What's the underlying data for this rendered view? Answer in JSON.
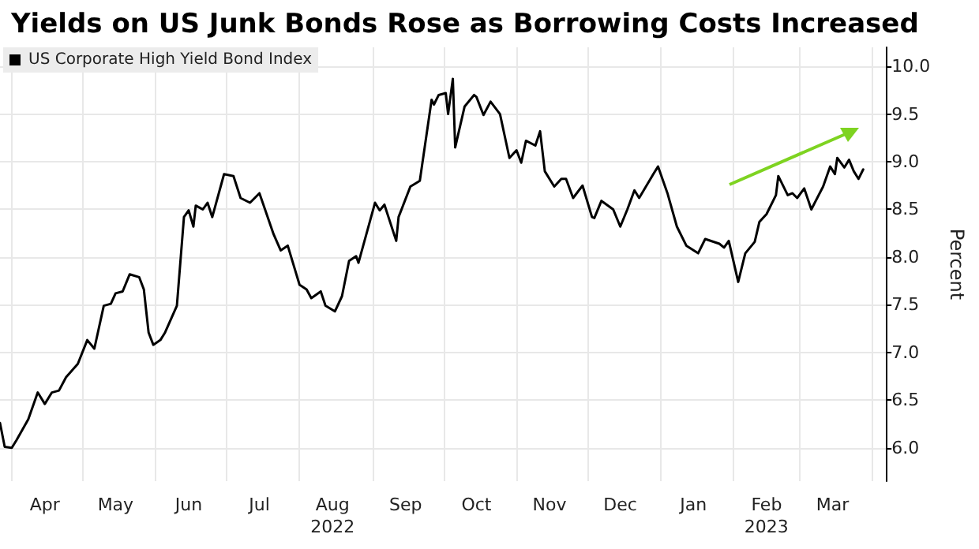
{
  "chart_data": {
    "type": "line",
    "title": "Yields on US Junk Bonds Rose as Borrowing Costs Increased",
    "ylabel": "Percent",
    "x": [
      "2022-03-27",
      "2022-03-29",
      "2022-04-01",
      "2022-04-03",
      "2022-04-08",
      "2022-04-12",
      "2022-04-15",
      "2022-04-18",
      "2022-04-21",
      "2022-04-24",
      "2022-04-29",
      "2022-05-03",
      "2022-05-06",
      "2022-05-10",
      "2022-05-13",
      "2022-05-15",
      "2022-05-18",
      "2022-05-21",
      "2022-05-25",
      "2022-05-27",
      "2022-05-29",
      "2022-05-31",
      "2022-06-03",
      "2022-06-05",
      "2022-06-10",
      "2022-06-13",
      "2022-06-15",
      "2022-06-17",
      "2022-06-18",
      "2022-06-21",
      "2022-06-23",
      "2022-06-25",
      "2022-06-30",
      "2022-07-04",
      "2022-07-07",
      "2022-07-11",
      "2022-07-15",
      "2022-07-21",
      "2022-07-24",
      "2022-07-27",
      "2022-08-01",
      "2022-08-04",
      "2022-08-06",
      "2022-08-10",
      "2022-08-12",
      "2022-08-16",
      "2022-08-19",
      "2022-08-22",
      "2022-08-25",
      "2022-08-26",
      "2022-09-02",
      "2022-09-04",
      "2022-09-06",
      "2022-09-11",
      "2022-09-12",
      "2022-09-17",
      "2022-09-21",
      "2022-09-26",
      "2022-09-27",
      "2022-09-29",
      "2022-10-02",
      "2022-10-03",
      "2022-10-05",
      "2022-10-06",
      "2022-10-10",
      "2022-10-14",
      "2022-10-15",
      "2022-10-18",
      "2022-10-21",
      "2022-10-25",
      "2022-10-29",
      "2022-11-01",
      "2022-11-03",
      "2022-11-05",
      "2022-11-09",
      "2022-11-11",
      "2022-11-13",
      "2022-11-17",
      "2022-11-20",
      "2022-11-22",
      "2022-11-25",
      "2022-11-29",
      "2022-12-03",
      "2022-12-04",
      "2022-12-07",
      "2022-12-12",
      "2022-12-15",
      "2022-12-18",
      "2022-12-21",
      "2022-12-23",
      "2022-12-29",
      "2022-12-31",
      "2023-01-04",
      "2023-01-08",
      "2023-01-12",
      "2023-01-17",
      "2023-01-20",
      "2023-01-26",
      "2023-01-28",
      "2023-01-30",
      "2023-02-03",
      "2023-02-06",
      "2023-02-10",
      "2023-02-12",
      "2023-02-15",
      "2023-02-19",
      "2023-02-20",
      "2023-02-24",
      "2023-02-26",
      "2023-02-28",
      "2023-03-03",
      "2023-03-06",
      "2023-03-11",
      "2023-03-14",
      "2023-03-16",
      "2023-03-17",
      "2023-03-20",
      "2023-03-22",
      "2023-03-24",
      "2023-03-26",
      "2023-03-28"
    ],
    "series": [
      {
        "name": "US Corporate High Yield Bond Index",
        "color": "#000000",
        "values": [
          6.26,
          6.01,
          6.0,
          6.08,
          6.3,
          6.58,
          6.46,
          6.58,
          6.6,
          6.74,
          6.88,
          7.13,
          7.04,
          7.49,
          7.51,
          7.62,
          7.64,
          7.82,
          7.79,
          7.66,
          7.21,
          7.08,
          7.13,
          7.21,
          7.49,
          8.42,
          8.49,
          8.32,
          8.54,
          8.5,
          8.57,
          8.42,
          8.87,
          8.85,
          8.62,
          8.57,
          8.67,
          8.24,
          8.07,
          8.12,
          7.71,
          7.66,
          7.57,
          7.64,
          7.49,
          7.43,
          7.59,
          7.96,
          8.01,
          7.94,
          8.57,
          8.49,
          8.55,
          8.17,
          8.42,
          8.74,
          8.8,
          9.65,
          9.6,
          9.7,
          9.72,
          9.5,
          9.87,
          9.15,
          9.58,
          9.7,
          9.68,
          9.49,
          9.63,
          9.5,
          9.04,
          9.12,
          8.99,
          9.22,
          9.17,
          9.32,
          8.9,
          8.74,
          8.82,
          8.82,
          8.62,
          8.75,
          8.42,
          8.41,
          8.59,
          8.5,
          8.32,
          8.5,
          8.7,
          8.62,
          8.87,
          8.95,
          8.67,
          8.32,
          8.12,
          8.04,
          8.19,
          8.14,
          8.1,
          8.17,
          7.74,
          8.04,
          8.16,
          8.37,
          8.45,
          8.65,
          8.85,
          8.65,
          8.67,
          8.62,
          8.72,
          8.5,
          8.74,
          8.95,
          8.87,
          9.04,
          8.94,
          9.02,
          8.9,
          8.82,
          8.92
        ]
      }
    ],
    "xlim": [
      "2022-03-27",
      "2023-04-07"
    ],
    "xticks": [
      {
        "value": "2022-04-01",
        "label": null
      },
      {
        "value": "2022-04-15",
        "label": "Apr"
      },
      {
        "value": "2022-05-01",
        "label": null
      },
      {
        "value": "2022-05-15",
        "label": "May"
      },
      {
        "value": "2022-06-01",
        "label": null
      },
      {
        "value": "2022-06-15",
        "label": "Jun"
      },
      {
        "value": "2022-07-01",
        "label": null
      },
      {
        "value": "2022-07-15",
        "label": "Jul"
      },
      {
        "value": "2022-08-01",
        "label": null
      },
      {
        "value": "2022-08-15",
        "label": "Aug\n2022"
      },
      {
        "value": "2022-09-01",
        "label": null
      },
      {
        "value": "2022-09-15",
        "label": "Sep"
      },
      {
        "value": "2022-10-01",
        "label": null
      },
      {
        "value": "2022-10-15",
        "label": "Oct"
      },
      {
        "value": "2022-11-01",
        "label": null
      },
      {
        "value": "2022-11-15",
        "label": "Nov"
      },
      {
        "value": "2022-12-01",
        "label": null
      },
      {
        "value": "2022-12-15",
        "label": "Dec"
      },
      {
        "value": "2023-01-01",
        "label": null
      },
      {
        "value": "2023-01-15",
        "label": "Jan"
      },
      {
        "value": "2023-02-01",
        "label": null
      },
      {
        "value": "2023-02-15",
        "label": "Feb\n2023"
      },
      {
        "value": "2023-03-01",
        "label": null
      },
      {
        "value": "2023-03-15",
        "label": "Mar"
      },
      {
        "value": "2023-04-01",
        "label": null
      }
    ],
    "ylim": [
      5.65,
      10.2
    ],
    "yticks": [
      {
        "value": 6,
        "label": "6.0"
      },
      {
        "value": 6.5,
        "label": "6.5"
      },
      {
        "value": 7,
        "label": "7.0"
      },
      {
        "value": 7.5,
        "label": "7.5"
      },
      {
        "value": 8,
        "label": "8.0"
      },
      {
        "value": 8.5,
        "label": "8.5"
      },
      {
        "value": 9,
        "label": "9.0"
      },
      {
        "value": 9.5,
        "label": "9.5"
      },
      {
        "value": 10,
        "label": "10.0"
      }
    ],
    "grid": true,
    "legend": "top left",
    "marker": "none",
    "line_style": "solid"
  }
}
